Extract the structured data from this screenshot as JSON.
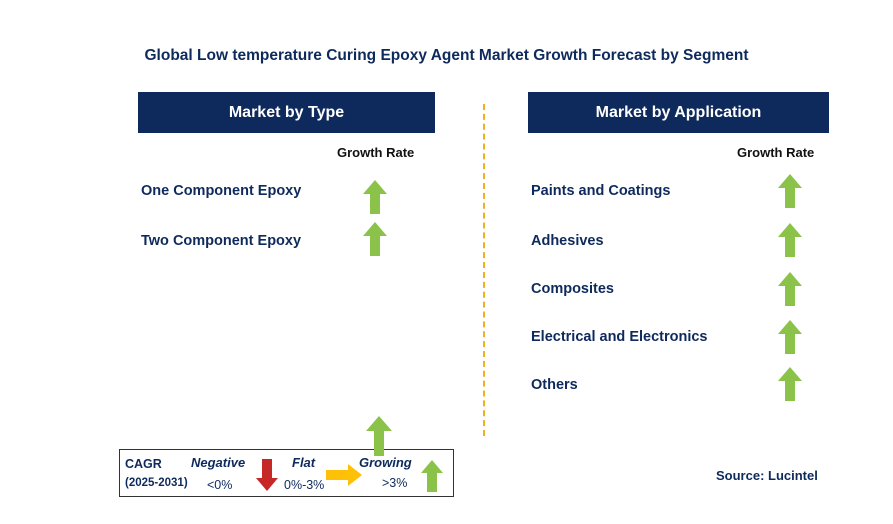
{
  "title": "Global Low temperature Curing Epoxy Agent Market Growth Forecast by Segment",
  "type_panel": {
    "header": "Market by Type",
    "growth_label": "Growth Rate",
    "items": [
      {
        "label": "One Component Epoxy",
        "trend": "growing"
      },
      {
        "label": "Two Component Epoxy",
        "trend": "growing"
      }
    ]
  },
  "application_panel": {
    "header": "Market by Application",
    "growth_label": "Growth Rate",
    "items": [
      {
        "label": "Paints and Coatings",
        "trend": "growing"
      },
      {
        "label": "Adhesives",
        "trend": "growing"
      },
      {
        "label": "Composites",
        "trend": "growing"
      },
      {
        "label": "Electrical and Electronics",
        "trend": "growing"
      },
      {
        "label": "Others",
        "trend": "growing"
      }
    ]
  },
  "legend": {
    "cagr_label": "CAGR",
    "period": "(2025-2031)",
    "negative_label": "Negative",
    "negative_range": "<0%",
    "flat_label": "Flat",
    "flat_range": "0%-3%",
    "growing_label": "Growing",
    "growing_range": ">3%"
  },
  "source": "Source: Lucintel",
  "colors": {
    "navy": "#0e2a5c",
    "growing_arrow": "#8bc34a",
    "negative_arrow": "#d32f2f",
    "flat_arrow": "#ffc107",
    "divider": "#f0b020"
  }
}
